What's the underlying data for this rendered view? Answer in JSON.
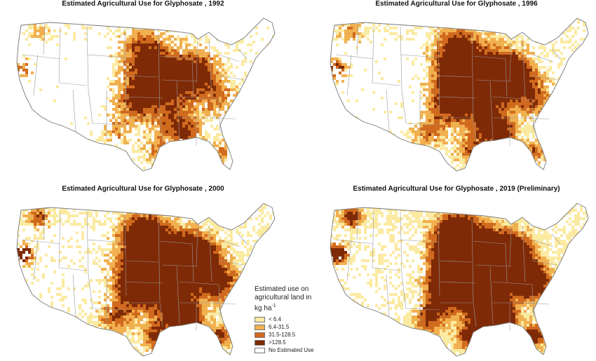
{
  "maps": [
    {
      "id": "p1",
      "title": "Estimated Agricultural Use for Glyphosate , 1992",
      "intensity": 1
    },
    {
      "id": "p2",
      "title": "Estimated Agricultural Use for Glyphosate , 1996",
      "intensity": 2
    },
    {
      "id": "p3",
      "title": "Estimated Agricultural Use for Glyphosate , 2000",
      "intensity": 3
    },
    {
      "id": "p4",
      "title": "Estimated Agricultural Use for Glyphosate , 2019 (Preliminary)",
      "intensity": 4
    }
  ],
  "legend": {
    "title_line1": "Estimated use on",
    "title_line2": "agricultural land in",
    "title_unit": "kg ha",
    "title_sup": "-1",
    "items": [
      {
        "label": "< 6.4",
        "color": "#fbeaa2"
      },
      {
        "label": "6.4-31.5",
        "color": "#f1b04f"
      },
      {
        "label": "31.5-128.5",
        "color": "#d06a1e"
      },
      {
        "label": ">128.5",
        "color": "#7f2a06"
      },
      {
        "label": "No Estimated Use",
        "color": "#ffffff"
      }
    ]
  }
}
